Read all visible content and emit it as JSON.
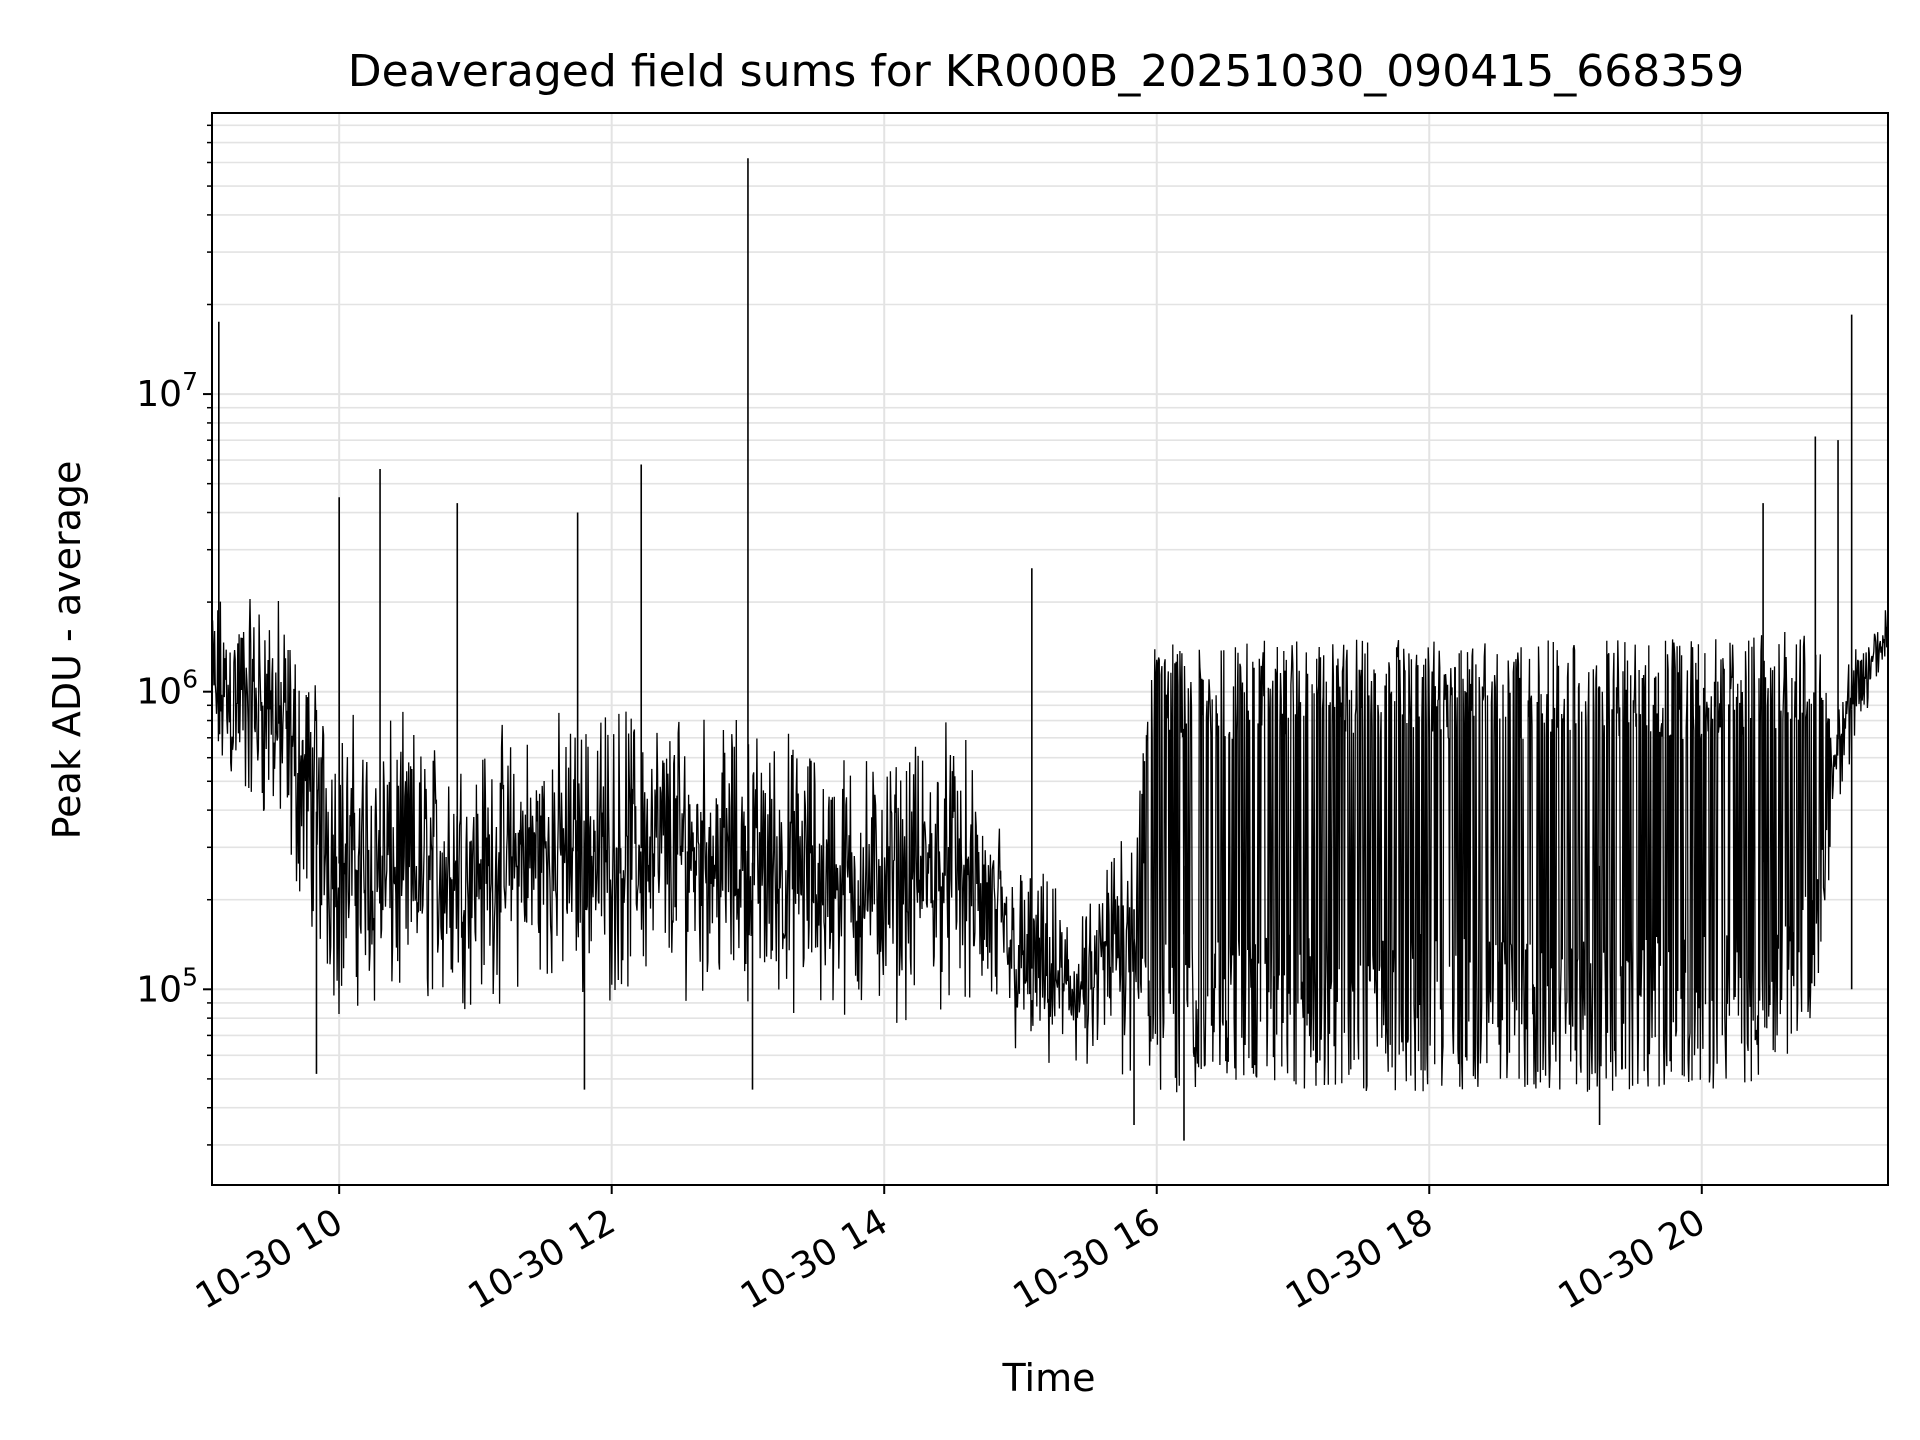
{
  "chart_data": {
    "type": "line",
    "title": "Deaveraged field sums for KR000B_20251030_090415_668359",
    "xlabel": "Time",
    "ylabel": "Peak ADU - average",
    "yscale": "log",
    "xlim": [
      "2025-10-30 09:04",
      "2025-10-30 21:22"
    ],
    "ylim": [
      22000,
      88000000
    ],
    "grid": {
      "major": true,
      "minor_y": true
    },
    "line_color": "#000000",
    "x_ticks": [
      {
        "value": "2025-10-30 10:00",
        "label": "10-30 10"
      },
      {
        "value": "2025-10-30 12:00",
        "label": "10-30 12"
      },
      {
        "value": "2025-10-30 14:00",
        "label": "10-30 14"
      },
      {
        "value": "2025-10-30 16:00",
        "label": "10-30 16"
      },
      {
        "value": "2025-10-30 18:00",
        "label": "10-30 18"
      },
      {
        "value": "2025-10-30 20:00",
        "label": "10-30 20"
      }
    ],
    "y_ticks": [
      {
        "value": 100000,
        "base": "10",
        "exp": "5"
      },
      {
        "value": 1000000,
        "base": "10",
        "exp": "6"
      },
      {
        "value": 10000000,
        "base": "10",
        "exp": "7"
      }
    ],
    "envelope": [
      {
        "t": "2025-10-30 09:04",
        "low": 420000,
        "high": 2400000
      },
      {
        "t": "2025-10-30 09:30",
        "low": 300000,
        "high": 2600000
      },
      {
        "t": "2025-10-30 10:00",
        "low": 70000,
        "high": 1000000
      },
      {
        "t": "2025-10-30 10:30",
        "low": 70000,
        "high": 900000
      },
      {
        "t": "2025-10-30 11:00",
        "low": 80000,
        "high": 800000
      },
      {
        "t": "2025-10-30 11:30",
        "low": 90000,
        "high": 900000
      },
      {
        "t": "2025-10-30 12:00",
        "low": 80000,
        "high": 1100000
      },
      {
        "t": "2025-10-30 12:30",
        "low": 90000,
        "high": 1000000
      },
      {
        "t": "2025-10-30 13:00",
        "low": 80000,
        "high": 900000
      },
      {
        "t": "2025-10-30 13:30",
        "low": 70000,
        "high": 800000
      },
      {
        "t": "2025-10-30 14:00",
        "low": 70000,
        "high": 700000
      },
      {
        "t": "2025-10-30 14:30",
        "low": 80000,
        "high": 900000
      },
      {
        "t": "2025-10-30 15:00",
        "low": 50000,
        "high": 300000
      },
      {
        "t": "2025-10-30 15:30",
        "low": 45000,
        "high": 200000
      },
      {
        "t": "2025-10-30 16:00",
        "low": 45000,
        "high": 1500000
      },
      {
        "t": "2025-10-30 16:30",
        "low": 45000,
        "high": 1500000
      },
      {
        "t": "2025-10-30 17:00",
        "low": 45000,
        "high": 1500000
      },
      {
        "t": "2025-10-30 17:30",
        "low": 45000,
        "high": 1500000
      },
      {
        "t": "2025-10-30 18:00",
        "low": 45000,
        "high": 1500000
      },
      {
        "t": "2025-10-30 18:30",
        "low": 45000,
        "high": 1500000
      },
      {
        "t": "2025-10-30 19:00",
        "low": 45000,
        "high": 1500000
      },
      {
        "t": "2025-10-30 19:30",
        "low": 45000,
        "high": 1500000
      },
      {
        "t": "2025-10-30 20:00",
        "low": 45000,
        "high": 1500000
      },
      {
        "t": "2025-10-30 20:30",
        "low": 45000,
        "high": 1600000
      },
      {
        "t": "2025-10-30 20:50",
        "low": 80000,
        "high": 1600000
      },
      {
        "t": "2025-10-30 21:00",
        "low": 400000,
        "high": 1200000
      },
      {
        "t": "2025-10-30 21:22",
        "low": 1200000,
        "high": 2200000
      }
    ],
    "spikes": [
      {
        "t": "2025-10-30 09:07",
        "value": 17500000
      },
      {
        "t": "2025-10-30 10:00",
        "value": 4500000
      },
      {
        "t": "2025-10-30 10:18",
        "value": 5600000
      },
      {
        "t": "2025-10-30 10:52",
        "value": 4300000
      },
      {
        "t": "2025-10-30 11:45",
        "value": 4000000
      },
      {
        "t": "2025-10-30 12:13",
        "value": 5800000
      },
      {
        "t": "2025-10-30 13:00",
        "value": 62000000
      },
      {
        "t": "2025-10-30 15:05",
        "value": 2600000
      },
      {
        "t": "2025-10-30 20:27",
        "value": 4300000
      },
      {
        "t": "2025-10-30 20:50",
        "value": 7200000
      },
      {
        "t": "2025-10-30 21:00",
        "value": 7000000
      },
      {
        "t": "2025-10-30 21:06",
        "value": 18500000
      }
    ],
    "dips": [
      {
        "t": "2025-10-30 09:50",
        "value": 52000
      },
      {
        "t": "2025-10-30 11:48",
        "value": 46000
      },
      {
        "t": "2025-10-30 13:02",
        "value": 46000
      },
      {
        "t": "2025-10-30 15:50",
        "value": 35000
      },
      {
        "t": "2025-10-30 16:12",
        "value": 31000
      },
      {
        "t": "2025-10-30 19:15",
        "value": 35000
      },
      {
        "t": "2025-10-30 21:06",
        "value": 100000
      }
    ]
  }
}
